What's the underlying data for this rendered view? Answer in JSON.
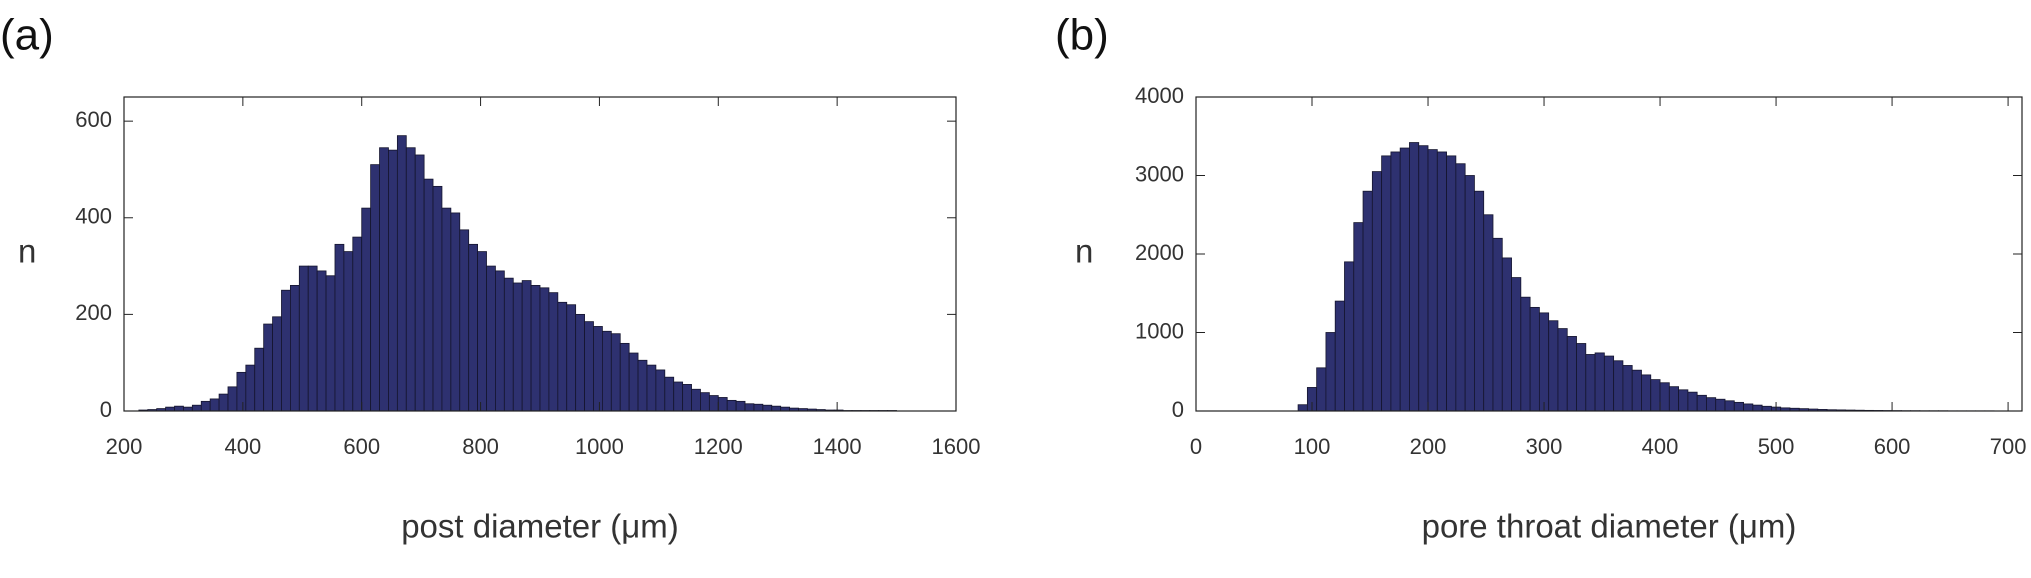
{
  "chart_data": [
    {
      "type": "histogram",
      "panel_label": "(a)",
      "x_label": "post diameter (μm)",
      "y_label": "n",
      "color": "#2e3170",
      "bins": [
        225,
        240,
        255,
        270,
        285,
        300,
        315,
        330,
        345,
        360,
        375,
        390,
        405,
        420,
        435,
        450,
        465,
        480,
        495,
        510,
        525,
        540,
        555,
        570,
        585,
        600,
        615,
        630,
        645,
        660,
        675,
        690,
        705,
        720,
        735,
        750,
        765,
        780,
        795,
        810,
        825,
        840,
        855,
        870,
        885,
        900,
        915,
        930,
        945,
        960,
        975,
        990,
        1005,
        1020,
        1035,
        1050,
        1065,
        1080,
        1095,
        1110,
        1125,
        1140,
        1155,
        1170,
        1185,
        1200,
        1215,
        1230,
        1245,
        1260,
        1275,
        1290,
        1305,
        1320,
        1335,
        1350,
        1365,
        1380,
        1395,
        1410,
        1425,
        1440,
        1455,
        1470,
        1485,
        1500
      ],
      "values": [
        2,
        3,
        5,
        8,
        10,
        8,
        12,
        20,
        25,
        35,
        50,
        80,
        95,
        130,
        180,
        195,
        250,
        260,
        300,
        300,
        290,
        280,
        345,
        330,
        360,
        420,
        510,
        545,
        540,
        570,
        545,
        530,
        480,
        465,
        420,
        410,
        375,
        345,
        330,
        300,
        290,
        275,
        265,
        270,
        260,
        255,
        245,
        225,
        220,
        200,
        185,
        175,
        165,
        160,
        140,
        120,
        105,
        95,
        85,
        70,
        60,
        55,
        45,
        38,
        32,
        28,
        22,
        20,
        15,
        14,
        12,
        10,
        8,
        6,
        5,
        4,
        3,
        2,
        2,
        1,
        1,
        1,
        1,
        1,
        1
      ],
      "xlim": [
        200,
        1600
      ],
      "ylim": [
        0,
        650
      ],
      "xticks": [
        200,
        400,
        600,
        800,
        1000,
        1200,
        1400,
        1600
      ],
      "yticks": [
        0,
        200,
        400,
        600
      ]
    },
    {
      "type": "histogram",
      "panel_label": "(b)",
      "x_label": "pore throat diameter (μm)",
      "y_label": "n",
      "color": "#2e3170",
      "bins": [
        88,
        96,
        104,
        112,
        120,
        128,
        136,
        144,
        152,
        160,
        168,
        176,
        184,
        192,
        200,
        208,
        216,
        224,
        232,
        240,
        248,
        256,
        264,
        272,
        280,
        288,
        296,
        304,
        312,
        320,
        328,
        336,
        344,
        352,
        360,
        368,
        376,
        384,
        392,
        400,
        408,
        416,
        424,
        432,
        440,
        448,
        456,
        464,
        472,
        480,
        488,
        496,
        504,
        512,
        520,
        528,
        536,
        544,
        552,
        560,
        568,
        576,
        584,
        592,
        600,
        608,
        616,
        624,
        632,
        640,
        648,
        656,
        664,
        672,
        680,
        688,
        696,
        704,
        712
      ],
      "values": [
        80,
        300,
        550,
        1000,
        1400,
        1900,
        2400,
        2800,
        3050,
        3250,
        3300,
        3350,
        3420,
        3380,
        3330,
        3300,
        3250,
        3150,
        3000,
        2800,
        2500,
        2200,
        1950,
        1700,
        1450,
        1320,
        1250,
        1150,
        1050,
        950,
        860,
        720,
        740,
        700,
        640,
        580,
        520,
        460,
        400,
        360,
        310,
        270,
        240,
        200,
        170,
        150,
        130,
        110,
        90,
        75,
        60,
        50,
        40,
        35,
        30,
        25,
        20,
        16,
        14,
        12,
        10,
        8,
        7,
        6,
        5,
        4,
        4,
        3,
        3,
        3,
        2,
        2,
        2,
        2,
        2,
        1,
        1,
        1
      ],
      "xlim": [
        0,
        712
      ],
      "ylim": [
        0,
        4000
      ],
      "xticks": [
        0,
        100,
        200,
        300,
        400,
        500,
        600,
        700
      ],
      "yticks": [
        0,
        1000,
        2000,
        3000,
        4000
      ]
    }
  ]
}
